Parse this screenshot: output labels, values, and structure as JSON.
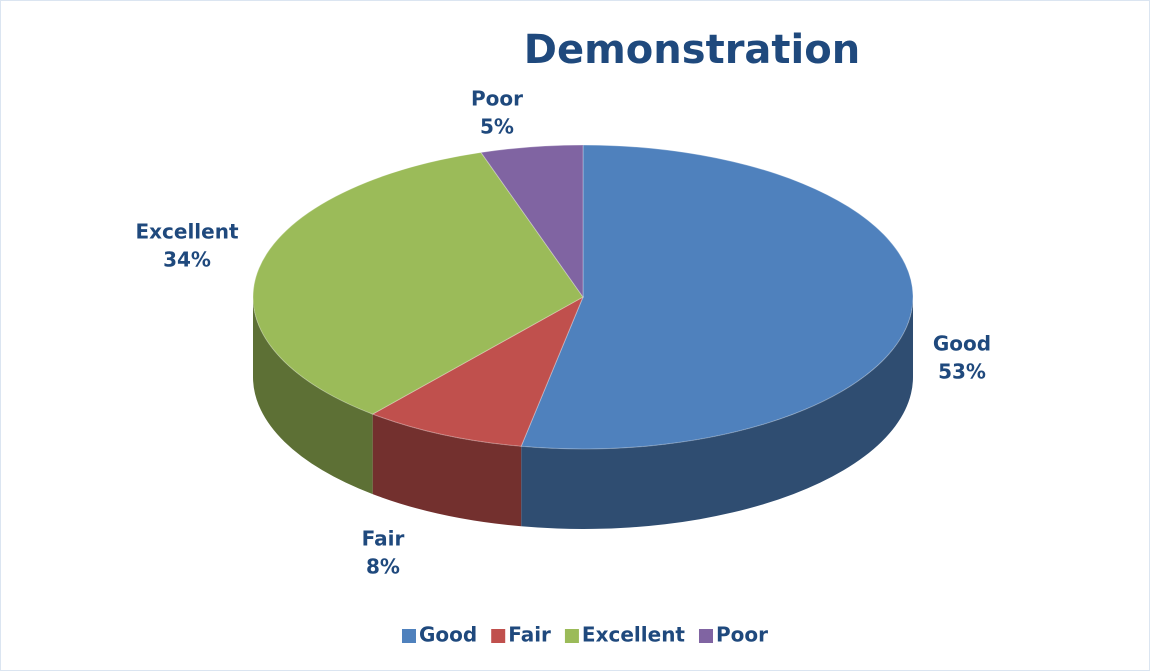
{
  "chart_data": {
    "type": "pie",
    "title": "Demonstration",
    "categories": [
      "Good",
      "Fair",
      "Excellent",
      "Poor"
    ],
    "values": [
      53,
      8,
      34,
      5
    ],
    "value_labels": [
      "53%",
      "8%",
      "34%",
      "5%"
    ],
    "colors": [
      "#4f81bd",
      "#c0504d",
      "#9bbb59",
      "#8064a2"
    ],
    "legend": "bottom"
  }
}
